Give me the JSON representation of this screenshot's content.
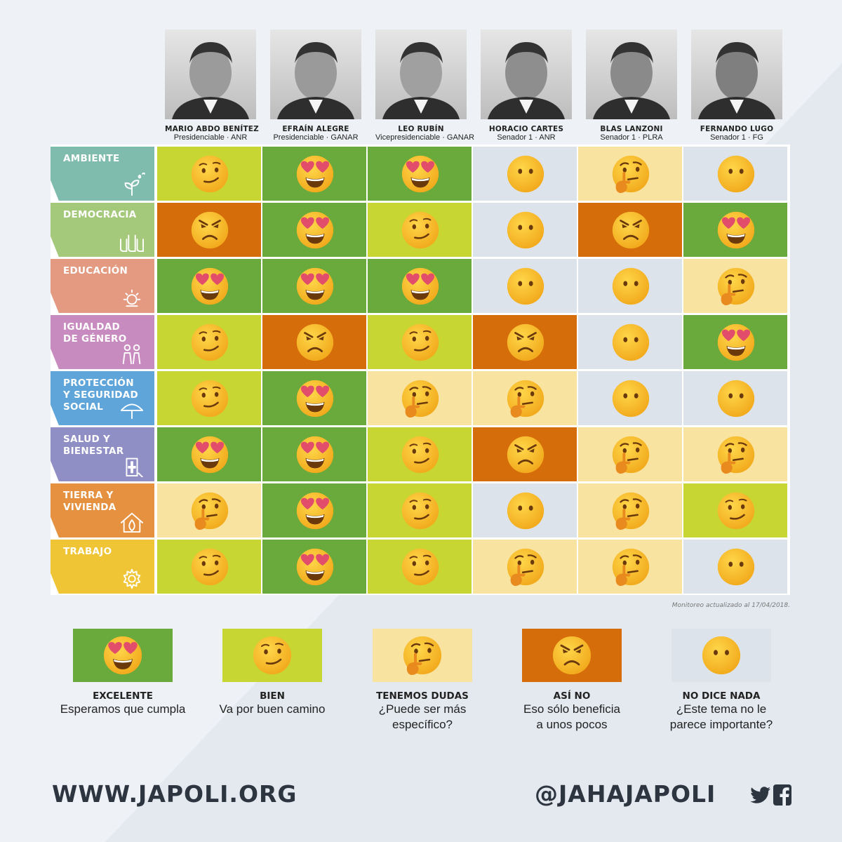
{
  "candidates": [
    {
      "name": "MARIO ABDO BENÍTEZ",
      "role": "Presidenciable · ANR"
    },
    {
      "name": "EFRAÍN ALEGRE",
      "role": "Presidenciable · GANAR"
    },
    {
      "name": "LEO RUBÍN",
      "role": "Vicepresidenciable · GANAR"
    },
    {
      "name": "HORACIO CARTES",
      "role": "Senador 1 · ANR"
    },
    {
      "name": "BLAS LANZONI",
      "role": "Senador 1 · PLRA"
    },
    {
      "name": "FERNANDO LUGO",
      "role": "Senador 1 · FG"
    }
  ],
  "rows": [
    {
      "label": "AMBIENTE",
      "color": "#7fbcae",
      "icon": "plant-icon",
      "ratings": [
        "bien",
        "excelente",
        "excelente",
        "no-dice-nada",
        "tenemos-dudas",
        "no-dice-nada"
      ]
    },
    {
      "label": "DEMOCRACIA",
      "color": "#a5c97b",
      "icon": "raised-hands-icon",
      "ratings": [
        "asi-no",
        "excelente",
        "bien",
        "no-dice-nada",
        "asi-no",
        "excelente"
      ]
    },
    {
      "label": "EDUCACIÓN",
      "color": "#e39a80",
      "icon": "lightbulb-icon",
      "ratings": [
        "excelente",
        "excelente",
        "excelente",
        "no-dice-nada",
        "no-dice-nada",
        "tenemos-dudas"
      ]
    },
    {
      "label": "IGUALDAD DE GÉNERO",
      "color": "#c88bbf",
      "icon": "people-icon",
      "ratings": [
        "bien",
        "asi-no",
        "bien",
        "asi-no",
        "no-dice-nada",
        "excelente"
      ]
    },
    {
      "label": "PROTECCIÓN Y SEGURIDAD SOCIAL",
      "color": "#5fa5da",
      "icon": "umbrella-icon",
      "ratings": [
        "bien",
        "excelente",
        "tenemos-dudas",
        "tenemos-dudas",
        "no-dice-nada",
        "no-dice-nada"
      ]
    },
    {
      "label": "SALUD Y BIENESTAR",
      "color": "#8f8fc6",
      "icon": "health-cross-icon",
      "ratings": [
        "excelente",
        "excelente",
        "bien",
        "asi-no",
        "tenemos-dudas",
        "tenemos-dudas"
      ]
    },
    {
      "label": "TIERRA Y VIVIENDA",
      "color": "#e5913f",
      "icon": "house-leaf-icon",
      "ratings": [
        "tenemos-dudas",
        "excelente",
        "bien",
        "no-dice-nada",
        "tenemos-dudas",
        "bien"
      ]
    },
    {
      "label": "TRABAJO",
      "color": "#f0c535",
      "icon": "gear-icon",
      "ratings": [
        "bien",
        "excelente",
        "bien",
        "tenemos-dudas",
        "tenemos-dudas",
        "no-dice-nada"
      ]
    }
  ],
  "ratings": {
    "excelente": {
      "color": "#6aa93b",
      "emoji": "heart-eyes-emoji",
      "title": "EXCELENTE",
      "desc": "Esperamos que cumpla"
    },
    "bien": {
      "color": "#c8d634",
      "emoji": "smirk-emoji",
      "title": "BIEN",
      "desc": "Va por buen camino"
    },
    "tenemos-dudas": {
      "color": "#f9e3a1",
      "emoji": "thinking-emoji",
      "title": "TENEMOS DUDAS",
      "desc": "¿Puede ser más específico?"
    },
    "asi-no": {
      "color": "#d66d0b",
      "emoji": "angry-emoji",
      "title": "ASÍ NO",
      "desc": "Eso sólo beneficia a unos pocos"
    },
    "no-dice-nada": {
      "color": "#dde3ea",
      "emoji": "neutral-emoji",
      "title": "NO DICE NADA",
      "desc": "¿Este tema no le parece importante?"
    }
  },
  "legend_order": [
    "excelente",
    "bien",
    "tenemos-dudas",
    "asi-no",
    "no-dice-nada"
  ],
  "note": "Monitoreo actualizado al 17/04/2018.",
  "footer": {
    "website": "WWW.JAPOLI.ORG",
    "handle": "@JAHAJAPOLI"
  }
}
